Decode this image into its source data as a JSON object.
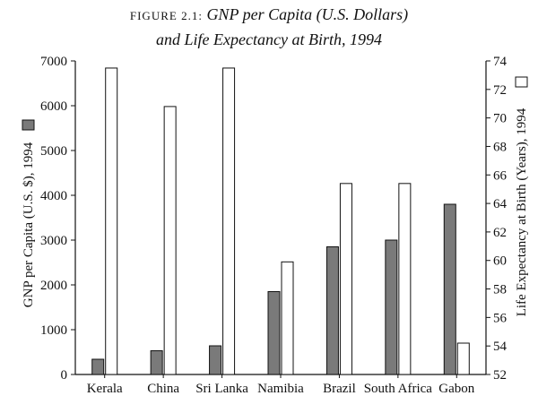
{
  "figure": {
    "label": "FIGURE 2.1:",
    "title_line1": "GNP per Capita (U.S. Dollars)",
    "title_line2": "and Life Expectancy at Birth, 1994"
  },
  "chart_data": {
    "type": "bar",
    "categories": [
      "Kerala",
      "China",
      "Sri Lanka",
      "Namibia",
      "Brazil",
      "South Africa",
      "Gabon"
    ],
    "series": [
      {
        "name": "GNP per Capita (U.S. $), 1994",
        "axis": "left",
        "color": "#7a7a7a",
        "values": [
          340,
          530,
          640,
          1850,
          2850,
          3000,
          3800
        ]
      },
      {
        "name": "Life Expectancy at Birth (Years), 1994",
        "axis": "right",
        "color": "#ffffff",
        "values": [
          73.5,
          70.8,
          73.5,
          59.9,
          65.4,
          65.4,
          54.2
        ]
      }
    ],
    "left_axis": {
      "label": "GNP per Capita (U.S. $), 1994",
      "min": 0,
      "max": 7000,
      "ticks": [
        0,
        1000,
        2000,
        3000,
        4000,
        5000,
        6000,
        7000
      ]
    },
    "right_axis": {
      "label": "Life Expectancy at Birth (Years), 1994",
      "min": 52,
      "max": 74,
      "ticks": [
        52,
        54,
        56,
        58,
        60,
        62,
        64,
        66,
        68,
        70,
        72,
        74
      ]
    },
    "grid": false,
    "legend": "axis-label swatches"
  }
}
